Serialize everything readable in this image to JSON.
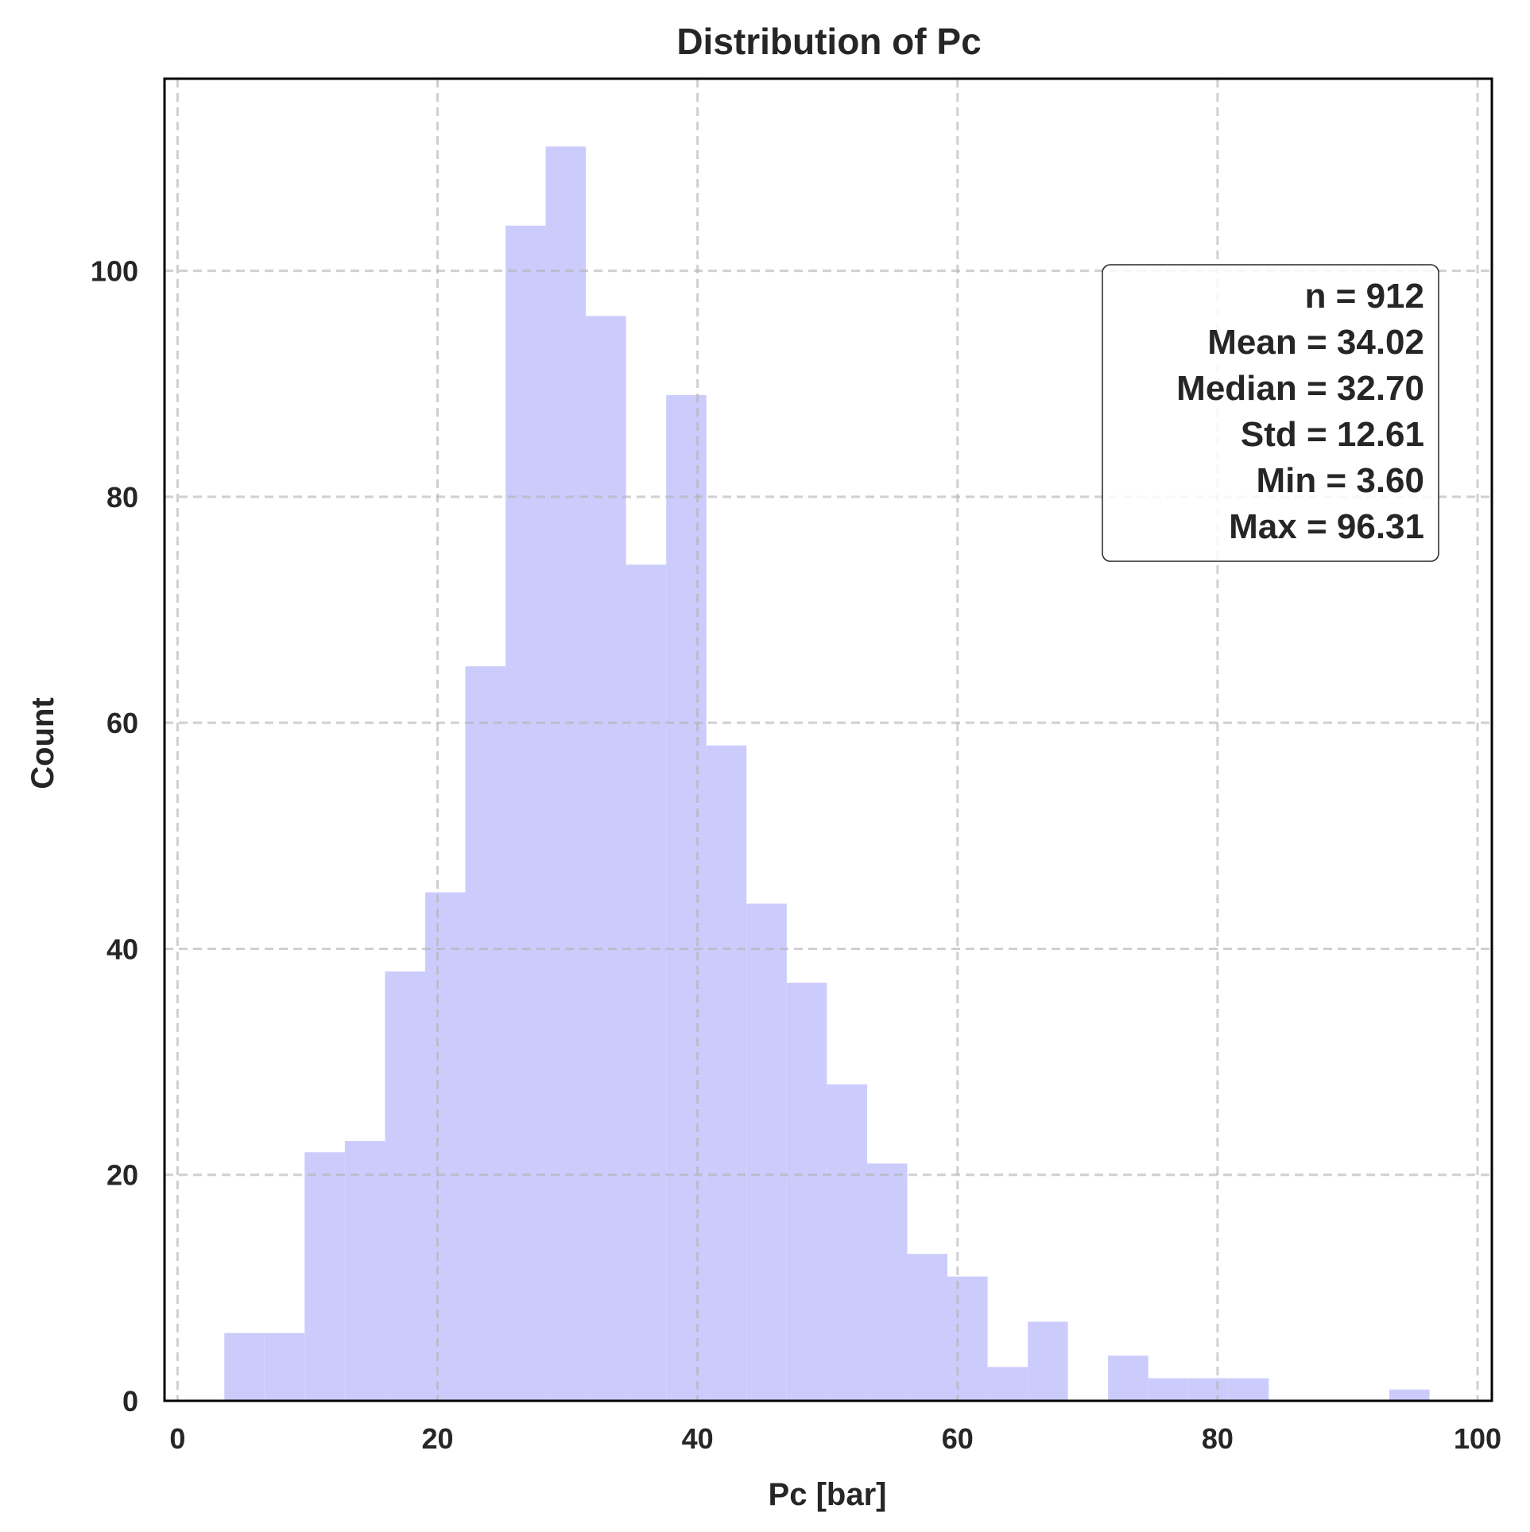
{
  "chart_data": {
    "type": "bar",
    "title": "Distribution of Pc",
    "xlabel": "Pc [bar]",
    "ylabel": "Count",
    "xlim": [
      -1.0,
      101.1
    ],
    "ylim": [
      0,
      117
    ],
    "xticks": [
      0,
      20,
      40,
      60,
      80,
      100
    ],
    "yticks": [
      0,
      20,
      40,
      60,
      80,
      100
    ],
    "grid": true,
    "bar_color": "#ccccfc",
    "bin_edges": [
      3.6,
      6.69,
      9.78,
      12.87,
      15.96,
      19.05,
      22.14,
      25.23,
      28.32,
      31.41,
      34.5,
      37.59,
      40.68,
      43.77,
      46.86,
      49.95,
      53.04,
      56.13,
      59.22,
      62.31,
      65.4,
      68.49,
      71.58,
      74.67,
      77.76,
      80.85,
      83.94,
      87.03,
      90.12,
      93.21,
      96.31
    ],
    "counts": [
      6,
      6,
      22,
      23,
      38,
      45,
      65,
      104,
      111,
      96,
      74,
      89,
      58,
      44,
      37,
      28,
      21,
      13,
      11,
      3,
      7,
      0,
      4,
      2,
      2,
      2,
      0,
      0,
      0,
      1
    ],
    "stats_box": {
      "placement": "top-right",
      "lines": [
        "n = 912",
        "Mean = 34.02",
        "Median = 32.70",
        "Std = 12.61",
        "Min = 3.60",
        "Max = 96.31"
      ]
    }
  }
}
